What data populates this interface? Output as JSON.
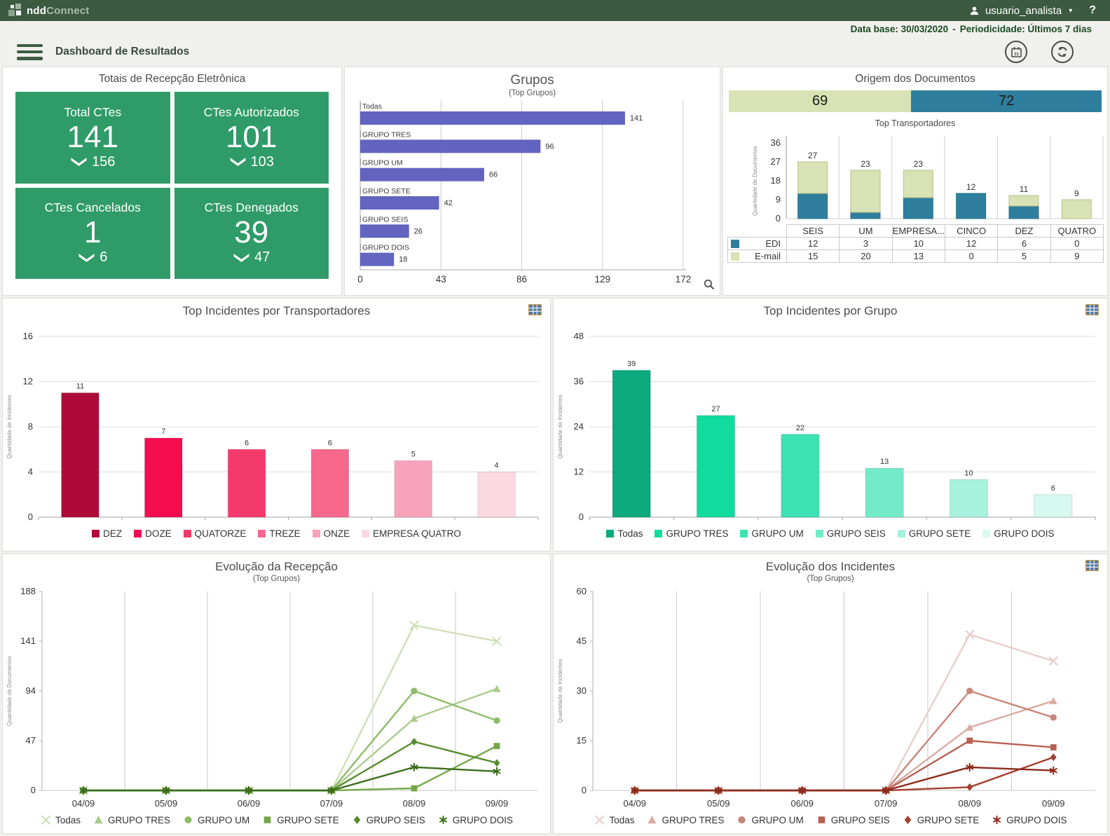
{
  "topbar": {
    "brand_bold": "ndd",
    "brand_light": "Connect",
    "user_name": "usuario_analista",
    "caret": "▾",
    "help": "?"
  },
  "infobar": {
    "left": "Data base: 30/03/2020",
    "separator": "-",
    "right": "Periodicidade: Últimos 7 dias"
  },
  "header": {
    "title": "Dashboard de Resultados"
  },
  "kpi": {
    "title": "Totais de Recepção Eletrônica",
    "cards": [
      {
        "label": "Total CTes",
        "value": "141",
        "secondary": "156"
      },
      {
        "label": "CTes Autorizados",
        "value": "101",
        "secondary": "103"
      },
      {
        "label": "CTes Cancelados",
        "value": "1",
        "secondary": "6"
      },
      {
        "label": "CTes Denegados",
        "value": "39",
        "secondary": "47"
      }
    ]
  },
  "chart_data": [
    {
      "id": "grupos",
      "type": "bar",
      "orientation": "horizontal",
      "title": "Grupos",
      "subtitle": "(Top Grupos)",
      "categories": [
        "Todas",
        "GRUPO TRES",
        "GRUPO UM",
        "GRUPO SETE",
        "GRUPO SEIS",
        "GRUPO DOIS"
      ],
      "values": [
        141,
        96,
        66,
        42,
        26,
        18
      ],
      "bar_color": "#6264bf",
      "xlim": [
        0,
        172
      ],
      "xticks": [
        0,
        43,
        86,
        129,
        172
      ],
      "grid": "vertical"
    },
    {
      "id": "origem",
      "type": "stacked-hbar",
      "title": "Origem dos Documentos",
      "segments": [
        {
          "name": "E-mail",
          "value": 69,
          "color": "#d9e2b4"
        },
        {
          "name": "EDI",
          "value": 72,
          "color": "#2f7e9d"
        }
      ]
    },
    {
      "id": "transportadores",
      "type": "stacked-bar",
      "title": "Top Transportadores",
      "ylabel": "Quantidade de Documentos",
      "categories": [
        "SEIS",
        "UM",
        "EMPRESA...",
        "CINCO",
        "DEZ",
        "QUATRO"
      ],
      "series": [
        {
          "name": "EDI",
          "color": "#2f7e9d",
          "values": [
            12,
            3,
            10,
            12,
            6,
            0
          ]
        },
        {
          "name": "E-mail",
          "color": "#d9e2b4",
          "values": [
            15,
            20,
            13,
            0,
            5,
            9
          ]
        }
      ],
      "totals": [
        27,
        23,
        23,
        12,
        11,
        9
      ],
      "ylim": [
        0,
        36
      ],
      "yticks": [
        0,
        9,
        18,
        27,
        36
      ],
      "grid": "vertical"
    },
    {
      "id": "incidentes_transportadores",
      "type": "bar",
      "title": "Top Incidentes por Transportadores",
      "ylabel": "Quantidade de Incidentes",
      "categories": [
        "DEZ",
        "DOZE",
        "QUATORZE",
        "TREZE",
        "ONZE",
        "EMPRESA QUATRO"
      ],
      "values": [
        11,
        7,
        6,
        6,
        5,
        4
      ],
      "colors": [
        "#ae0a39",
        "#f30c4e",
        "#f43a6b",
        "#f7688c",
        "#f8a3bb",
        "#fbd9e3"
      ],
      "ylim": [
        0,
        16
      ],
      "yticks": [
        0,
        4,
        8,
        12,
        16
      ],
      "grid": "horizontal",
      "legend_position": "bottom"
    },
    {
      "id": "incidentes_grupo",
      "type": "bar",
      "title": "Top Incidentes por Grupo",
      "ylabel": "Quantidade de Incidentes",
      "categories": [
        "Todas",
        "GRUPO TRES",
        "GRUPO UM",
        "GRUPO SEIS",
        "GRUPO SETE",
        "GRUPO DOIS"
      ],
      "values": [
        39,
        27,
        22,
        13,
        10,
        6
      ],
      "colors": [
        "#0caa7d",
        "#11dc9e",
        "#3ce2b2",
        "#73ebc8",
        "#a7f2dc",
        "#d7f9ef"
      ],
      "ylim": [
        0,
        48
      ],
      "yticks": [
        0,
        12,
        24,
        36,
        48
      ],
      "grid": "horizontal",
      "legend_position": "bottom"
    },
    {
      "id": "evolucao_recepcao",
      "type": "line",
      "title": "Evolução da Recepção",
      "subtitle": "(Top Grupos)",
      "ylabel": "Quantidade de Documentos",
      "x": [
        "04/09",
        "05/09",
        "06/09",
        "07/09",
        "08/09",
        "09/09"
      ],
      "ylim": [
        0,
        188
      ],
      "yticks": [
        0,
        47,
        94,
        141,
        188
      ],
      "grid": "vertical",
      "legend_position": "bottom",
      "series": [
        {
          "name": "Todas",
          "marker": "x",
          "color": "#cfe0b8",
          "values": [
            0,
            0,
            0,
            0,
            156,
            141
          ]
        },
        {
          "name": "GRUPO TRES",
          "marker": "triangle",
          "color": "#abcb8d",
          "values": [
            0,
            0,
            0,
            0,
            68,
            96
          ]
        },
        {
          "name": "GRUPO UM",
          "marker": "circle",
          "color": "#8fbc67",
          "values": [
            0,
            0,
            0,
            0,
            94,
            66
          ]
        },
        {
          "name": "GRUPO SETE",
          "marker": "square",
          "color": "#73a748",
          "values": [
            0,
            0,
            0,
            0,
            2,
            42
          ]
        },
        {
          "name": "GRUPO SEIS",
          "marker": "diamond",
          "color": "#578c2f",
          "values": [
            0,
            0,
            0,
            0,
            46,
            26
          ]
        },
        {
          "name": "GRUPO DOIS",
          "marker": "asterisk",
          "color": "#3e6e1d",
          "values": [
            0,
            0,
            0,
            0,
            22,
            18
          ]
        }
      ]
    },
    {
      "id": "evolucao_incidentes",
      "type": "line",
      "title": "Evolução dos Incidentes",
      "subtitle": "(Top Grupos)",
      "ylabel": "Quantidade de Incidentes",
      "x": [
        "04/09",
        "05/09",
        "06/09",
        "07/09",
        "08/09",
        "09/09"
      ],
      "ylim": [
        0,
        60
      ],
      "yticks": [
        0,
        15,
        30,
        45,
        60
      ],
      "grid": "vertical",
      "legend_position": "bottom",
      "series": [
        {
          "name": "Todas",
          "marker": "x",
          "color": "#e8cfca",
          "values": [
            0,
            0,
            0,
            0,
            47,
            39
          ]
        },
        {
          "name": "GRUPO TRES",
          "marker": "triangle",
          "color": "#d9aba1",
          "values": [
            0,
            0,
            0,
            0,
            19,
            27
          ]
        },
        {
          "name": "GRUPO UM",
          "marker": "circle",
          "color": "#c9867b",
          "values": [
            0,
            0,
            0,
            0,
            30,
            22
          ]
        },
        {
          "name": "GRUPO SEIS",
          "marker": "square",
          "color": "#b86052",
          "values": [
            0,
            0,
            0,
            0,
            15,
            13
          ]
        },
        {
          "name": "GRUPO SETE",
          "marker": "diamond",
          "color": "#a33f2f",
          "values": [
            0,
            0,
            0,
            0,
            1,
            10
          ]
        },
        {
          "name": "GRUPO DOIS",
          "marker": "asterisk",
          "color": "#8c2c1c",
          "values": [
            0,
            0,
            0,
            0,
            7,
            6
          ]
        }
      ]
    }
  ],
  "colors": {
    "topbar": "#3c5a40",
    "kpi_card": "#2f9b68",
    "accent_teal": "#2f7e9d",
    "accent_green_light": "#d9e2b4",
    "page_bg": "#f0f0ee",
    "info_text": "#1b4a20"
  }
}
